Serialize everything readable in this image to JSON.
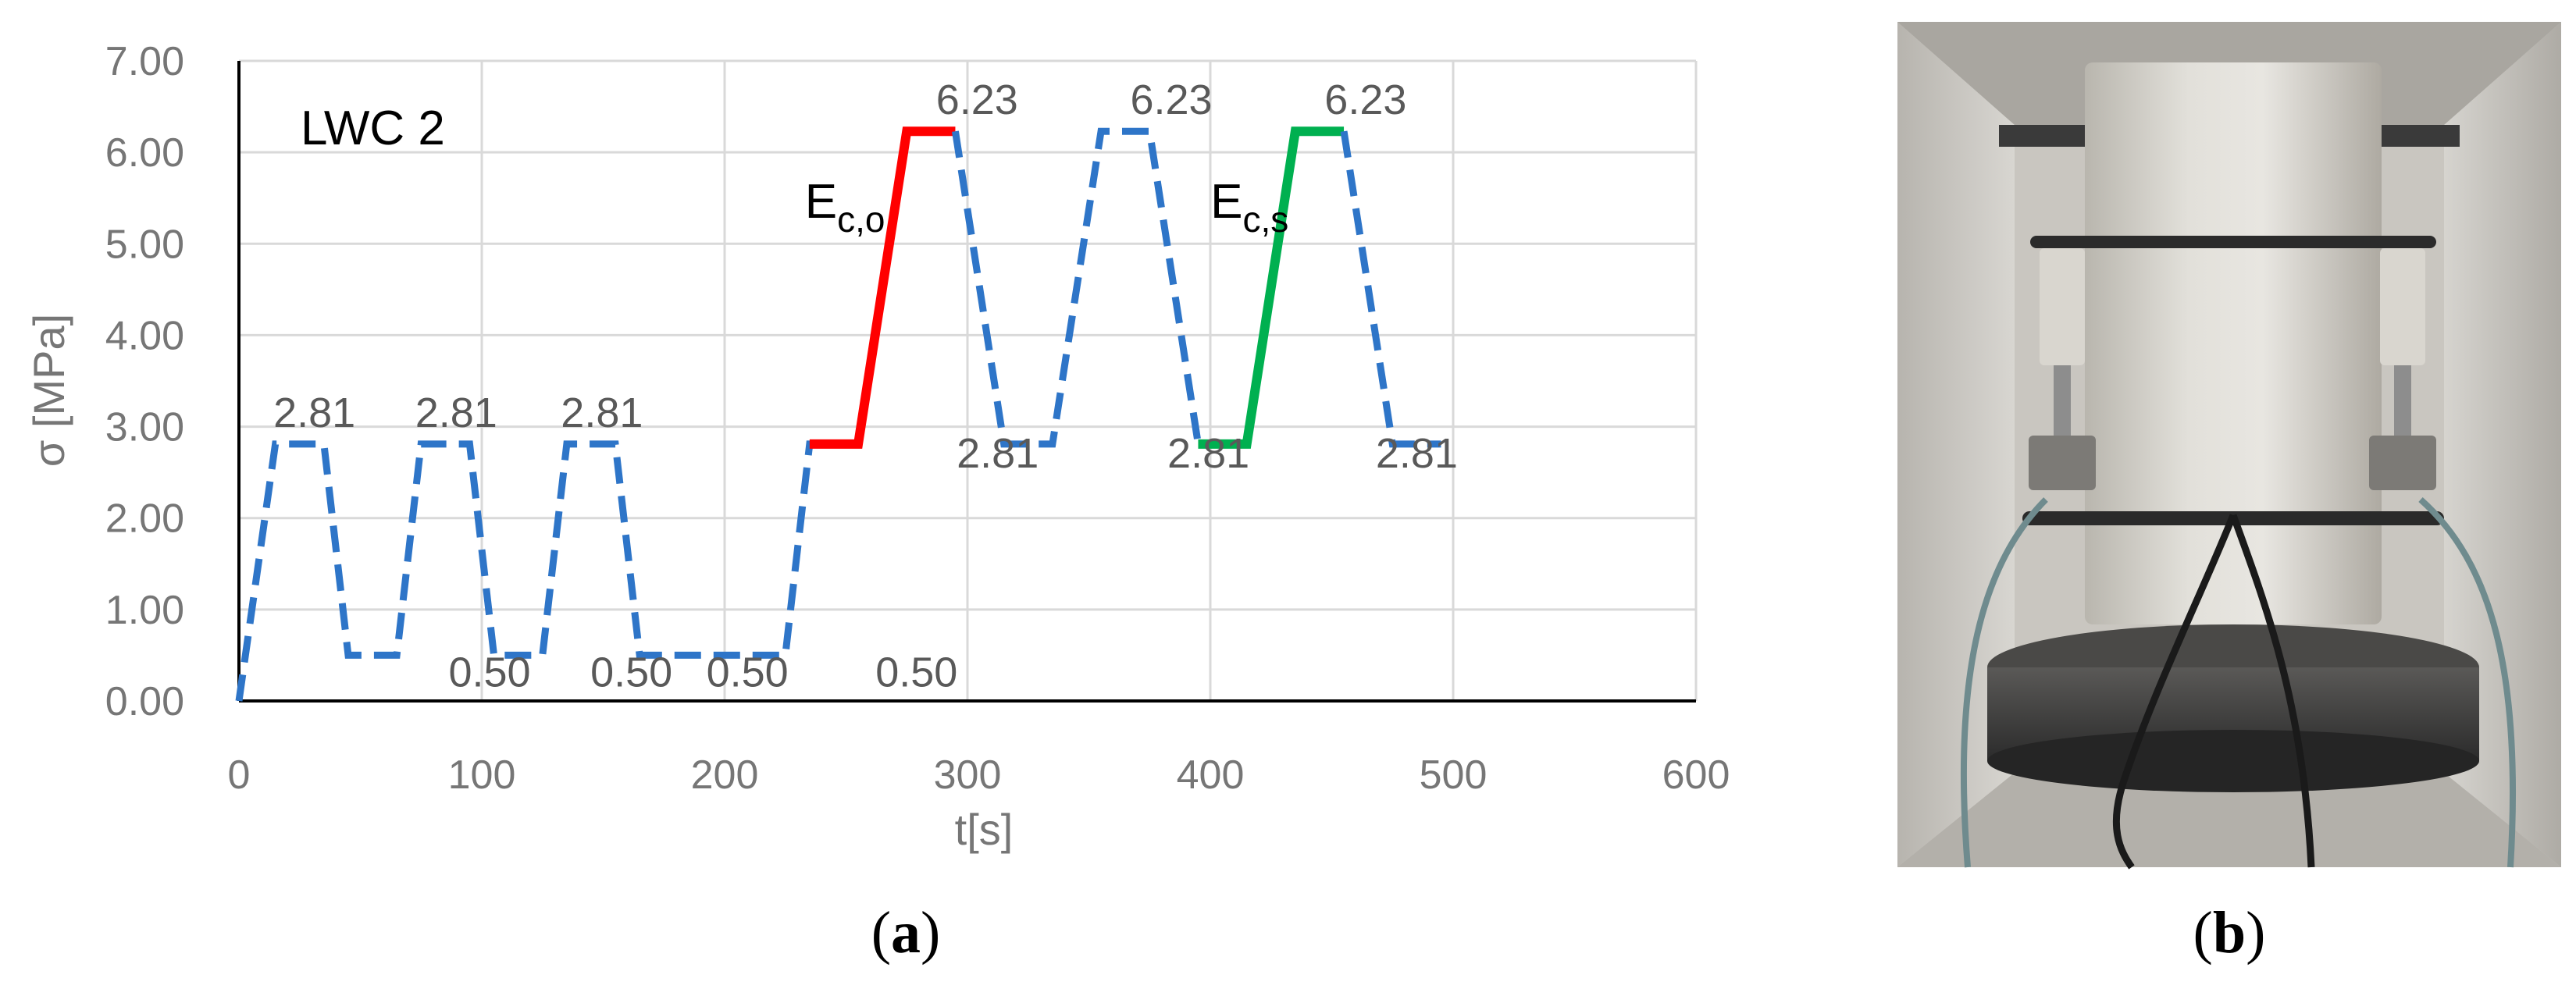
{
  "chart_data": {
    "type": "line",
    "title": "LWC 2",
    "xlabel": "t[s]",
    "ylabel": "σ [MPa]",
    "xlim": [
      0,
      600
    ],
    "ylim": [
      0,
      7
    ],
    "x_ticks": [
      0,
      100,
      200,
      300,
      400,
      500,
      600
    ],
    "y_ticks": [
      "0.00",
      "1.00",
      "2.00",
      "3.00",
      "4.00",
      "5.00",
      "6.00",
      "7.00"
    ],
    "grid": true,
    "series": [
      {
        "style": "dashed",
        "color": "#2E75C8",
        "x": [
          0,
          15,
          35,
          45,
          65,
          75,
          95,
          105,
          125,
          135,
          155,
          165,
          225,
          235,
          255
        ],
        "y": [
          0.0,
          2.81,
          2.81,
          0.5,
          0.5,
          2.81,
          2.81,
          0.5,
          0.5,
          2.81,
          2.81,
          0.5,
          0.5,
          2.81,
          2.81
        ]
      },
      {
        "style": "solid",
        "color": "#FF0000",
        "x": [
          235,
          255,
          275,
          295
        ],
        "y": [
          2.81,
          2.81,
          6.23,
          6.23
        ]
      },
      {
        "style": "dashed",
        "color": "#2E75C8",
        "x": [
          295,
          315,
          335,
          355,
          375,
          395
        ],
        "y": [
          6.23,
          2.81,
          2.81,
          6.23,
          6.23,
          2.81
        ]
      },
      {
        "style": "solid",
        "color": "#00B050",
        "x": [
          395,
          415,
          435,
          455
        ],
        "y": [
          2.81,
          2.81,
          6.23,
          6.23
        ]
      },
      {
        "style": "dashed",
        "color": "#2E75C8",
        "x": [
          455,
          475,
          495
        ],
        "y": [
          6.23,
          2.81,
          2.81
        ]
      }
    ],
    "data_labels": [
      {
        "text": "2.81",
        "x": 15,
        "y": 2.81
      },
      {
        "text": "2.81",
        "x": 75,
        "y": 2.81
      },
      {
        "text": "2.81",
        "x": 135,
        "y": 2.81
      },
      {
        "text": "0.50",
        "x": 55,
        "y": 0.5
      },
      {
        "text": "0.50",
        "x": 115,
        "y": 0.5
      },
      {
        "text": "0.50",
        "x": 165,
        "y": 0.5
      },
      {
        "text": "0.50",
        "x": 225,
        "y": 0.5
      },
      {
        "text": "6.23",
        "x": 275,
        "y": 6.23
      },
      {
        "text": "6.23",
        "x": 355,
        "y": 6.23
      },
      {
        "text": "6.23",
        "x": 435,
        "y": 6.23
      },
      {
        "text": "2.81",
        "x": 270,
        "y": 2.81
      },
      {
        "text": "2.81",
        "x": 360,
        "y": 2.81
      },
      {
        "text": "2.81",
        "x": 440,
        "y": 2.81
      }
    ],
    "annotations": [
      {
        "main": "E",
        "sub": "c,o",
        "x": 225,
        "y": 4.9
      },
      {
        "main": "E",
        "sub": "c,s",
        "x": 392,
        "y": 4.9
      }
    ]
  },
  "panels": {
    "a_label": "(a)",
    "a_letter": "a",
    "b_label": "(b)",
    "b_letter": "b",
    "photo": "photo of cylindrical lightweight concrete specimen with extensometer frame in a compression testing machine"
  },
  "colors": {
    "grid": "#D9D9D9",
    "axis": "#000000",
    "dashed_series": "#2E75C8",
    "loading_red": "#FF0000",
    "loading_green": "#00B050"
  }
}
